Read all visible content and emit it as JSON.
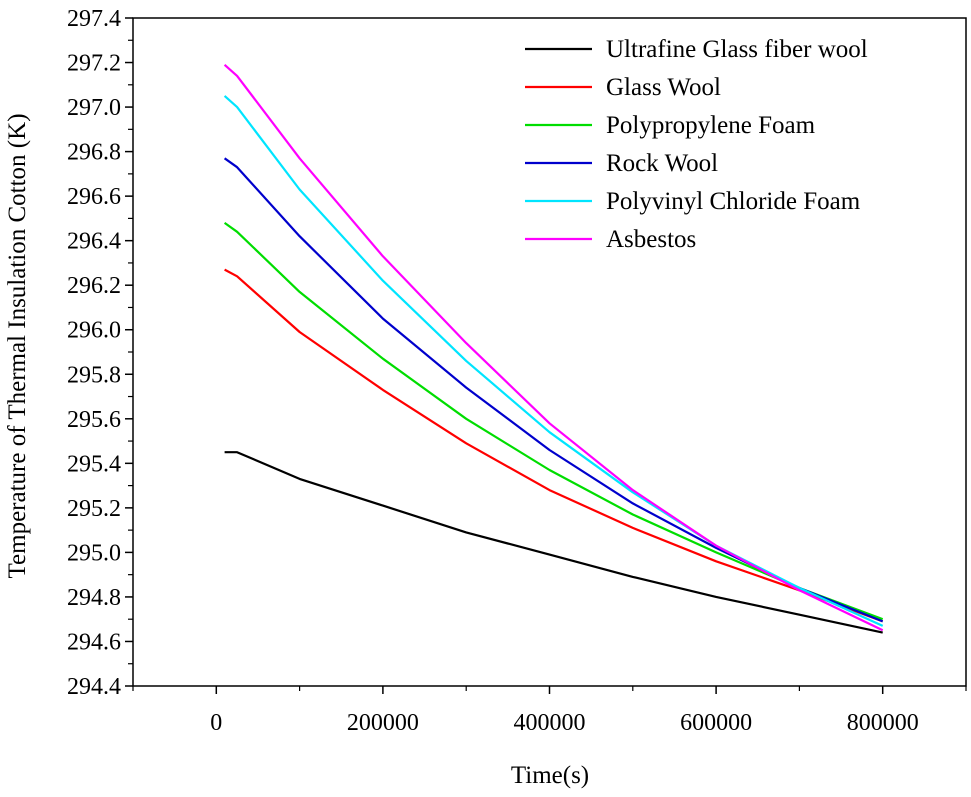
{
  "chart_data": {
    "type": "line",
    "title": "",
    "xlabel": "Time(s)",
    "ylabel": "Temperature of Thermal Insulation Cotton (K)",
    "xlim": [
      -100000,
      900000
    ],
    "ylim": [
      294.4,
      297.4
    ],
    "xticks": [
      0,
      200000,
      400000,
      600000,
      800000
    ],
    "xtick_labels": [
      "0",
      "200000",
      "400000",
      "600000",
      "800000"
    ],
    "yticks": [
      294.4,
      294.6,
      294.8,
      295.0,
      295.2,
      295.4,
      295.6,
      295.8,
      296.0,
      296.2,
      296.4,
      296.6,
      296.8,
      297.0,
      297.2,
      297.4
    ],
    "ytick_labels": [
      "294.4",
      "294.6",
      "294.8",
      "295.0",
      "295.2",
      "295.4",
      "295.6",
      "295.8",
      "296.0",
      "296.2",
      "296.4",
      "296.6",
      "296.8",
      "297.0",
      "297.2",
      "297.4"
    ],
    "grid": false,
    "legend_position": "top-right",
    "x": [
      10000,
      25000,
      100000,
      200000,
      300000,
      400000,
      500000,
      600000,
      700000,
      800000
    ],
    "series": [
      {
        "name": "Ultrafine Glass fiber wool",
        "color": "#000000",
        "values": [
          295.45,
          295.45,
          295.33,
          295.21,
          295.09,
          294.99,
          294.89,
          294.8,
          294.72,
          294.64
        ]
      },
      {
        "name": "Glass Wool",
        "color": "#ff0000",
        "values": [
          296.27,
          296.24,
          295.99,
          295.73,
          295.49,
          295.28,
          295.11,
          294.96,
          294.83,
          294.69
        ]
      },
      {
        "name": "Polypropylene Foam",
        "color": "#00dd00",
        "values": [
          296.48,
          296.44,
          296.17,
          295.87,
          295.6,
          295.37,
          295.17,
          295.0,
          294.84,
          294.7
        ]
      },
      {
        "name": "Rock Wool",
        "color": "#0000cc",
        "values": [
          296.77,
          296.73,
          296.42,
          296.05,
          295.74,
          295.46,
          295.22,
          295.02,
          294.84,
          294.69
        ]
      },
      {
        "name": "Polyvinyl Chloride Foam",
        "color": "#00e5ff",
        "values": [
          297.05,
          297.0,
          296.63,
          296.22,
          295.86,
          295.54,
          295.27,
          295.03,
          294.84,
          294.67
        ]
      },
      {
        "name": "Asbestos",
        "color": "#ff00ff",
        "values": [
          297.19,
          297.14,
          296.77,
          296.33,
          295.94,
          295.58,
          295.28,
          295.03,
          294.83,
          294.65
        ]
      }
    ]
  }
}
